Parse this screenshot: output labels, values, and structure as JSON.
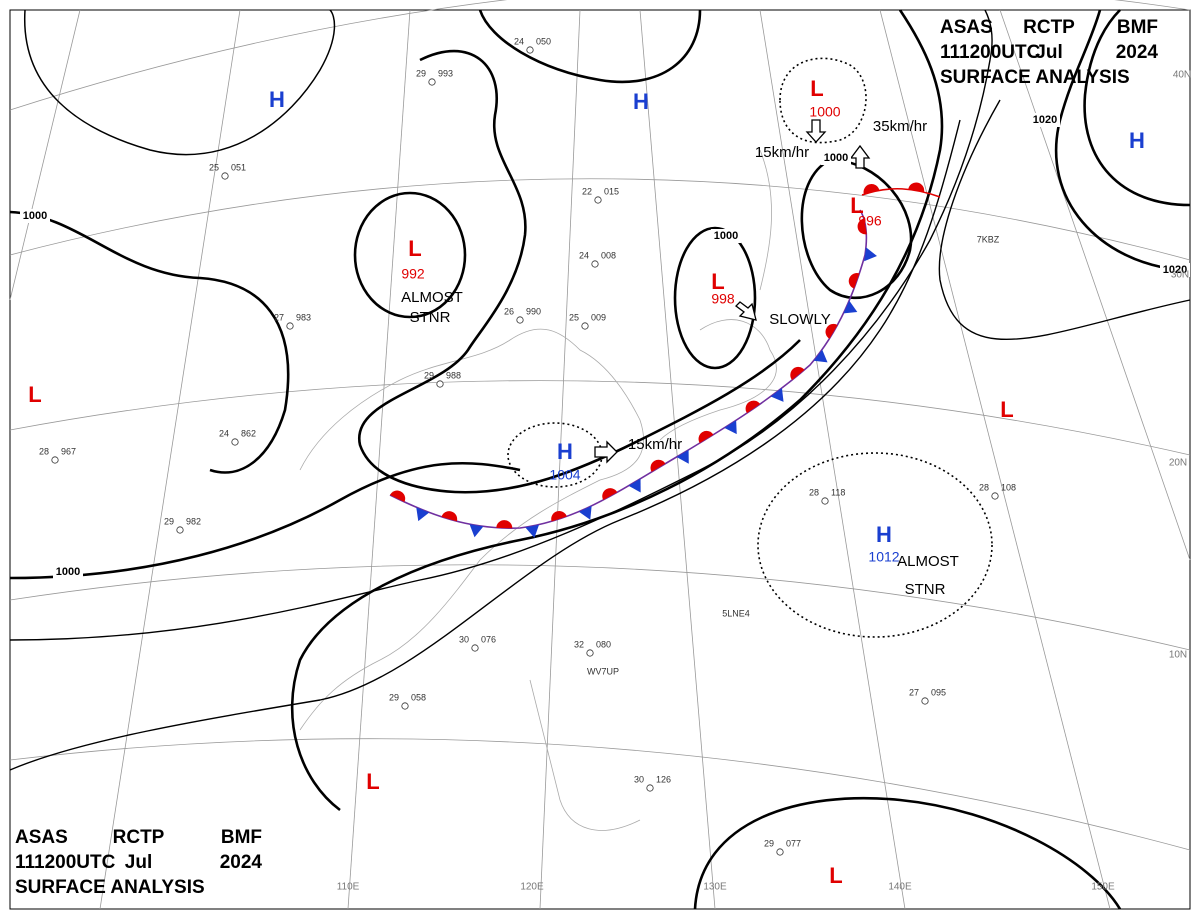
{
  "header": {
    "agency": "ASAS",
    "station": "RCTP",
    "code": "BMF",
    "time": "111200UTC",
    "month": "Jul",
    "year": "2024",
    "title": "SURFACE ANALYSIS"
  },
  "pressure_systems": [
    {
      "label": "H"
    },
    {
      "label": "H"
    },
    {
      "label": "H"
    },
    {
      "label": "L",
      "pressure": 992
    },
    {
      "label": "L"
    },
    {
      "label": "L",
      "pressure": 1000
    },
    {
      "label": "L",
      "pressure": 998
    },
    {
      "label": "L",
      "pressure": 996
    },
    {
      "label": "H",
      "pressure": 1004
    },
    {
      "label": "H",
      "pressure": 1012
    },
    {
      "label": "L"
    },
    {
      "label": "L"
    },
    {
      "label": "L"
    }
  ],
  "annotations": [
    "ALMOST",
    "STNR",
    "ALMOST",
    "STNR",
    "SLOWLY",
    "15km/hr",
    "35km/hr",
    "15km/hr"
  ],
  "isobar_labels": [
    "1000",
    "1000",
    "1000",
    "1000",
    "1020",
    "1020"
  ],
  "latitude_labels": [
    "40N",
    "30N",
    "20N",
    "10N"
  ],
  "longitude_labels": [
    "110E",
    "120E",
    "130E",
    "140E",
    "150E"
  ],
  "stations": [
    {
      "temp": "25",
      "pressure": "051"
    },
    {
      "temp": "27",
      "pressure": "983"
    },
    {
      "temp": "29",
      "pressure": "988"
    },
    {
      "temp": "24",
      "pressure": "008"
    },
    {
      "temp": "22",
      "pressure": "015"
    },
    {
      "temp": "26",
      "pressure": "990"
    },
    {
      "temp": "25",
      "pressure": "009"
    },
    {
      "temp": "24",
      "pressure": "862"
    },
    {
      "temp": "28",
      "pressure": "967"
    },
    {
      "temp": "29",
      "pressure": "982"
    },
    {
      "temp": "30",
      "pressure": "076"
    },
    {
      "temp": "32",
      "pressure": "080"
    },
    {
      "temp": "29",
      "pressure": "058"
    },
    {
      "temp": "28",
      "pressure": "118"
    },
    {
      "temp": "27",
      "pressure": "095"
    },
    {
      "temp": "29",
      "pressure": "077"
    },
    {
      "temp": "30",
      "pressure": "126"
    },
    {
      "temp": "24",
      "pressure": "050"
    },
    {
      "temp": "29",
      "pressure": "993"
    },
    {
      "temp": "28",
      "pressure": "108"
    }
  ],
  "call_signs": [
    "5LNE4",
    "WV7UP",
    "7KBZ"
  ]
}
